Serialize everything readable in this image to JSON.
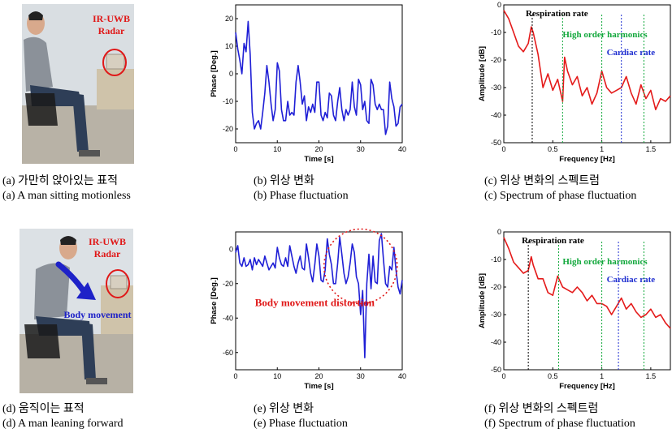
{
  "panels": {
    "a": {
      "caption_kr": "(a)  가만히  앉아있는  표적",
      "caption_en": "(a)  A  man  sitting  motionless",
      "radar_label_1": "IR-UWB",
      "radar_label_2": "Radar"
    },
    "b": {
      "caption_kr": "(b)  위상  변화",
      "caption_en": "(b)  Phase  fluctuation"
    },
    "c": {
      "caption_kr": "(c)  위상  변화의  스펙트럼",
      "caption_en": "(c)  Spectrum  of  phase  fluctuation",
      "annot_resp": "Respiration rate",
      "annot_harm": "High order harmonics",
      "annot_card": "Cardiac rate"
    },
    "d": {
      "caption_kr": "(d)  움직이는  표적",
      "caption_en": "(d)  A  man  leaning  forward",
      "radar_label_1": "IR-UWB",
      "radar_label_2": "Radar",
      "movement_label": "Body movement"
    },
    "e": {
      "caption_kr": "(e)  위상  변화",
      "caption_en": "(e)  Phase  fluctuation",
      "annot_distortion": "Body movement distortion"
    },
    "f": {
      "caption_kr": "(f)  위상  변화의  스펙트럼",
      "caption_en": "(f)  Spectrum  of  phase  fluctuation",
      "annot_resp": "Respiration rate",
      "annot_harm": "High order harmonics",
      "annot_card": "Cardiac rate"
    }
  },
  "colors": {
    "phase_line": "#1f1fd6",
    "spectrum_line": "#e41a1a",
    "resp_marker": "#000000",
    "harmonic_marker": "#12a83c",
    "cardiac_marker": "#1f2fd0",
    "annotation_red": "#e01818"
  },
  "chart_data": [
    {
      "id": "b",
      "type": "line",
      "xlabel": "Time [s]",
      "ylabel": "Phase [Deg.]",
      "xlim": [
        0,
        40
      ],
      "ylim": [
        -25,
        25
      ],
      "xticks": [
        0,
        10,
        20,
        30,
        40
      ],
      "yticks": [
        20,
        10,
        0,
        -10,
        -20
      ],
      "x": [
        0,
        0.5,
        1,
        1.5,
        2,
        2.5,
        3,
        3.5,
        4,
        4.5,
        5,
        5.5,
        6,
        6.5,
        7,
        7.5,
        8,
        8.5,
        9,
        9.5,
        10,
        10.5,
        11,
        11.5,
        12,
        12.5,
        13,
        13.5,
        14,
        14.5,
        15,
        15.5,
        16,
        16.5,
        17,
        17.5,
        18,
        18.5,
        19,
        19.5,
        20,
        20.5,
        21,
        21.5,
        22,
        22.5,
        23,
        23.5,
        24,
        24.5,
        25,
        25.5,
        26,
        26.5,
        27,
        27.5,
        28,
        28.5,
        29,
        29.5,
        30,
        30.5,
        31,
        31.5,
        32,
        32.5,
        33,
        33.5,
        34,
        34.5,
        35,
        35.5,
        36,
        36.5,
        37,
        37.5,
        38,
        38.5,
        39,
        39.5,
        40
      ],
      "y": [
        15,
        9,
        5,
        0,
        11,
        8,
        19,
        7,
        -14,
        -20,
        -18,
        -17,
        -20,
        -14,
        -7,
        3,
        -3,
        -11,
        -17,
        -13,
        4,
        1,
        -13,
        -17,
        -17,
        -10,
        -15,
        -14,
        -15,
        -3,
        3,
        -3,
        -11,
        -8,
        -17,
        -12,
        -14,
        -11,
        -14,
        -3,
        -3,
        -15,
        -17,
        -14,
        -16,
        -7,
        -8,
        -15,
        -17,
        -10,
        -5,
        -13,
        -17,
        -13,
        -15,
        -13,
        -3,
        -12,
        -15,
        -2,
        -4,
        -13,
        -10,
        -17,
        -18,
        -2,
        -4,
        -11,
        -13,
        -11,
        -13,
        -13,
        -22,
        -19,
        -3,
        -9,
        -12,
        -19,
        -18,
        -12,
        -11
      ]
    },
    {
      "id": "c",
      "type": "line",
      "xlabel": "Frequency [Hz]",
      "ylabel": "Amplitude [dB]",
      "xlim": [
        0,
        1.7
      ],
      "ylim": [
        -50,
        0
      ],
      "xticks": [
        0,
        0.5,
        1,
        1.5
      ],
      "yticks": [
        0,
        -10,
        -20,
        -30,
        -40,
        -50
      ],
      "x": [
        0,
        0.05,
        0.1,
        0.15,
        0.2,
        0.25,
        0.28,
        0.3,
        0.35,
        0.4,
        0.45,
        0.5,
        0.55,
        0.6,
        0.62,
        0.65,
        0.7,
        0.75,
        0.8,
        0.85,
        0.9,
        0.95,
        1.0,
        1.05,
        1.1,
        1.15,
        1.2,
        1.25,
        1.3,
        1.35,
        1.4,
        1.45,
        1.5,
        1.55,
        1.6,
        1.65,
        1.7
      ],
      "y": [
        -2,
        -5,
        -10,
        -15,
        -17,
        -14,
        -8,
        -10,
        -18,
        -30,
        -25,
        -31,
        -27,
        -35,
        -19,
        -24,
        -29,
        -26,
        -33,
        -30,
        -36,
        -32,
        -24,
        -30,
        -32,
        -31,
        -30,
        -26,
        -32,
        -36,
        -29,
        -34,
        -31,
        -38,
        -34,
        -35,
        -33
      ]
    },
    {
      "id": "e",
      "type": "line",
      "xlabel": "Time [s]",
      "ylabel": "Phase [Deg.]",
      "xlim": [
        0,
        40
      ],
      "ylim": [
        -70,
        10
      ],
      "xticks": [
        0,
        10,
        20,
        30,
        40
      ],
      "yticks": [
        0,
        -20,
        -40,
        -60
      ],
      "x": [
        0,
        0.5,
        1,
        1.5,
        2,
        2.5,
        3,
        3.5,
        4,
        4.5,
        5,
        5.5,
        6,
        6.5,
        7,
        7.5,
        8,
        8.5,
        9,
        9.5,
        10,
        10.5,
        11,
        11.5,
        12,
        12.5,
        13,
        13.5,
        14,
        14.5,
        15,
        15.5,
        16,
        16.5,
        17,
        17.5,
        18,
        18.5,
        19,
        19.5,
        20,
        20.5,
        21,
        21.5,
        22,
        22.5,
        23,
        23.5,
        24,
        24.5,
        25,
        25.5,
        26,
        26.5,
        27,
        27.5,
        28,
        28.5,
        29,
        29.5,
        30,
        30.5,
        31,
        31.5,
        32,
        32.5,
        33,
        33.5,
        34,
        34.5,
        35,
        35.5,
        36,
        36.5,
        37,
        37.5,
        38,
        38.5,
        39,
        39.5,
        40
      ],
      "y": [
        -2,
        2,
        -8,
        -10,
        -5,
        -10,
        -9,
        -6,
        -12,
        -5,
        -9,
        -6,
        -8,
        -10,
        -4,
        -8,
        -12,
        -10,
        -8,
        -11,
        1,
        -5,
        -9,
        -10,
        -5,
        -10,
        2,
        -4,
        -10,
        -14,
        -8,
        -4,
        -11,
        -12,
        3,
        -5,
        -14,
        -19,
        -9,
        3,
        -4,
        -18,
        -19,
        -12,
        6,
        -3,
        -9,
        -20,
        -20,
        -8,
        7,
        -3,
        -14,
        -20,
        -16,
        -8,
        3,
        -2,
        -16,
        -20,
        -38,
        -24,
        -63,
        -20,
        -3,
        -23,
        -4,
        -19,
        -20,
        5,
        9,
        -6,
        -20,
        -22,
        -10,
        -12,
        1,
        -12,
        -22,
        -26,
        -18
      ]
    },
    {
      "id": "f",
      "type": "line",
      "xlabel": "Frequency [Hz]",
      "ylabel": "Amplitude [dB]",
      "xlim": [
        0,
        1.7
      ],
      "ylim": [
        -50,
        0
      ],
      "xticks": [
        0,
        0.5,
        1,
        1.5
      ],
      "yticks": [
        0,
        -10,
        -20,
        -30,
        -40,
        -50
      ],
      "x": [
        0,
        0.05,
        0.1,
        0.15,
        0.2,
        0.25,
        0.28,
        0.3,
        0.35,
        0.4,
        0.45,
        0.5,
        0.55,
        0.6,
        0.65,
        0.7,
        0.75,
        0.8,
        0.85,
        0.9,
        0.95,
        1.0,
        1.05,
        1.1,
        1.15,
        1.2,
        1.25,
        1.3,
        1.35,
        1.4,
        1.45,
        1.5,
        1.55,
        1.6,
        1.65,
        1.7
      ],
      "y": [
        -2,
        -6,
        -11,
        -13,
        -15,
        -14,
        -9,
        -12,
        -17,
        -17,
        -22,
        -23,
        -16,
        -20,
        -21,
        -22,
        -20,
        -22,
        -25,
        -23,
        -26,
        -26,
        -27,
        -30,
        -27,
        -24,
        -28,
        -26,
        -29,
        -31,
        -30,
        -28,
        -31,
        -30,
        -33,
        -35
      ]
    }
  ]
}
